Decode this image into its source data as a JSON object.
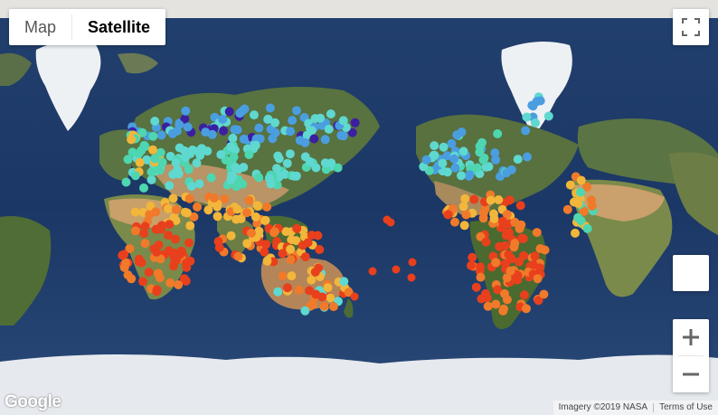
{
  "map_type_control": {
    "options": [
      "Map",
      "Satellite"
    ],
    "selected": "Satellite"
  },
  "controls": {
    "fullscreen_icon": "fullscreen-icon",
    "pegman_icon": "pegman-icon",
    "zoom_in_icon": "plus-icon",
    "zoom_out_icon": "minus-icon"
  },
  "logo_text": "Google",
  "attribution": {
    "imagery": "Imagery ©2019 NASA",
    "terms": "Terms of Use"
  },
  "colors": {
    "ocean": "#1d3a6b",
    "ocean_deep": "#172f5c",
    "land": "#4d6b35",
    "desert": "#c29a66",
    "ice": "#eaeef2",
    "point_purple": "#3b1fa0",
    "point_blue": "#4a9ee0",
    "point_cyan": "#5fd8d0",
    "point_teal": "#4ed6b0",
    "point_yellow": "#f2b63a",
    "point_orange": "#f07a2a",
    "point_red": "#e8401c"
  }
}
